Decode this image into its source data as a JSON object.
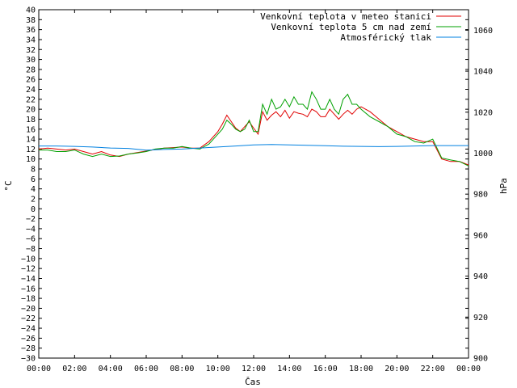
{
  "chart_data": {
    "type": "line",
    "xlabel": "Čas",
    "ylabel": "°C",
    "y2label": "hPa",
    "x_ticks": [
      "00:00",
      "02:00",
      "04:00",
      "06:00",
      "08:00",
      "10:00",
      "12:00",
      "14:00",
      "16:00",
      "18:00",
      "20:00",
      "22:00",
      "00:00"
    ],
    "xlim_hours": [
      0,
      24
    ],
    "ylim": [
      -30,
      40
    ],
    "y_ticks": [
      40,
      38,
      36,
      34,
      32,
      30,
      28,
      26,
      24,
      22,
      20,
      18,
      16,
      14,
      12,
      10,
      8,
      6,
      4,
      2,
      0,
      -2,
      -4,
      -6,
      -8,
      -10,
      -12,
      -14,
      -16,
      -18,
      -20,
      -22,
      -24,
      -26,
      -28,
      -30
    ],
    "y2lim": [
      900,
      1070
    ],
    "y2_ticks": [
      1060,
      1040,
      1020,
      1000,
      980,
      960,
      940,
      920,
      900
    ],
    "grid": false,
    "legend_position": "top-right",
    "series": [
      {
        "name": "Venkovní teplota v meteo stanici",
        "color": "#e00000",
        "axis": "left",
        "x": [
          0,
          0.5,
          1,
          1.5,
          2,
          2.5,
          3,
          3.5,
          4,
          4.5,
          5,
          5.5,
          6,
          6.5,
          7,
          7.5,
          8,
          8.5,
          9,
          9.5,
          10,
          10.25,
          10.5,
          10.75,
          11,
          11.25,
          11.5,
          11.75,
          12,
          12.25,
          12.5,
          12.75,
          13,
          13.25,
          13.5,
          13.75,
          14,
          14.25,
          14.5,
          14.75,
          15,
          15.25,
          15.5,
          15.75,
          16,
          16.25,
          16.5,
          16.75,
          17,
          17.25,
          17.5,
          17.75,
          18,
          18.5,
          19,
          19.5,
          20,
          20.5,
          21,
          21.5,
          22,
          22.5,
          23,
          23.5,
          24
        ],
        "y": [
          12,
          12.2,
          12,
          11.8,
          12,
          11.5,
          11,
          11.5,
          10.8,
          10.5,
          11,
          11.3,
          11.6,
          11.9,
          12.2,
          12.3,
          12.4,
          12.2,
          12.2,
          13.5,
          15.5,
          17,
          18.8,
          17.5,
          16.2,
          15.5,
          16.5,
          17.5,
          16.2,
          15,
          19.5,
          17.8,
          18.8,
          19.5,
          18.5,
          19.8,
          18.2,
          19.5,
          19.2,
          19,
          18.5,
          20,
          19.5,
          18.5,
          18.5,
          20,
          19,
          18,
          19,
          19.8,
          19,
          20,
          20.5,
          19.5,
          18,
          16.5,
          15.5,
          14.5,
          14,
          13.5,
          13.5,
          10,
          9.5,
          9.5,
          8.8
        ]
      },
      {
        "name": "Venkovní teplota 5 cm nad zemí",
        "color": "#00a000",
        "axis": "left",
        "x": [
          0,
          0.5,
          1,
          1.5,
          2,
          2.5,
          3,
          3.5,
          4,
          4.5,
          5,
          5.5,
          6,
          6.5,
          7,
          7.5,
          8,
          8.5,
          9,
          9.5,
          10,
          10.25,
          10.5,
          10.75,
          11,
          11.25,
          11.5,
          11.75,
          12,
          12.25,
          12.5,
          12.75,
          13,
          13.25,
          13.5,
          13.75,
          14,
          14.25,
          14.5,
          14.75,
          15,
          15.25,
          15.5,
          15.75,
          16,
          16.25,
          16.5,
          16.75,
          17,
          17.25,
          17.5,
          17.75,
          18,
          18.5,
          19,
          19.5,
          20,
          20.5,
          21,
          21.5,
          22,
          22.5,
          23,
          23.5,
          24
        ],
        "y": [
          11.8,
          11.8,
          11.5,
          11.5,
          11.8,
          11,
          10.5,
          11,
          10.5,
          10.6,
          11,
          11.2,
          11.5,
          12,
          12.2,
          12.2,
          12.5,
          12.2,
          12,
          13,
          15,
          16,
          17.8,
          17,
          16,
          15.5,
          16,
          17.8,
          15.5,
          15.5,
          21,
          19,
          22,
          20,
          20.5,
          22,
          20.5,
          22.5,
          21,
          21,
          20,
          23.5,
          22,
          20,
          20,
          22,
          20,
          19,
          22,
          23,
          21,
          21,
          20,
          18.5,
          17.5,
          16.5,
          15,
          14.5,
          13.5,
          13.2,
          14,
          10.2,
          9.8,
          9.5,
          8.6
        ]
      },
      {
        "name": "Atmosférický tlak",
        "color": "#0080e0",
        "axis": "right",
        "x": [
          0,
          1,
          2,
          3,
          4,
          5,
          6,
          7,
          8,
          9,
          10,
          11,
          12,
          13,
          14,
          15,
          16,
          17,
          18,
          19,
          20,
          21,
          22,
          23,
          24
        ],
        "y": [
          1003.5,
          1003.5,
          1003.3,
          1003,
          1002.5,
          1002.3,
          1001.5,
          1001.8,
          1002,
          1002.5,
          1003,
          1003.5,
          1004,
          1004.2,
          1004,
          1003.8,
          1003.6,
          1003.4,
          1003.3,
          1003.2,
          1003.3,
          1003.5,
          1003.7,
          1003.7,
          1003.7
        ]
      }
    ]
  }
}
